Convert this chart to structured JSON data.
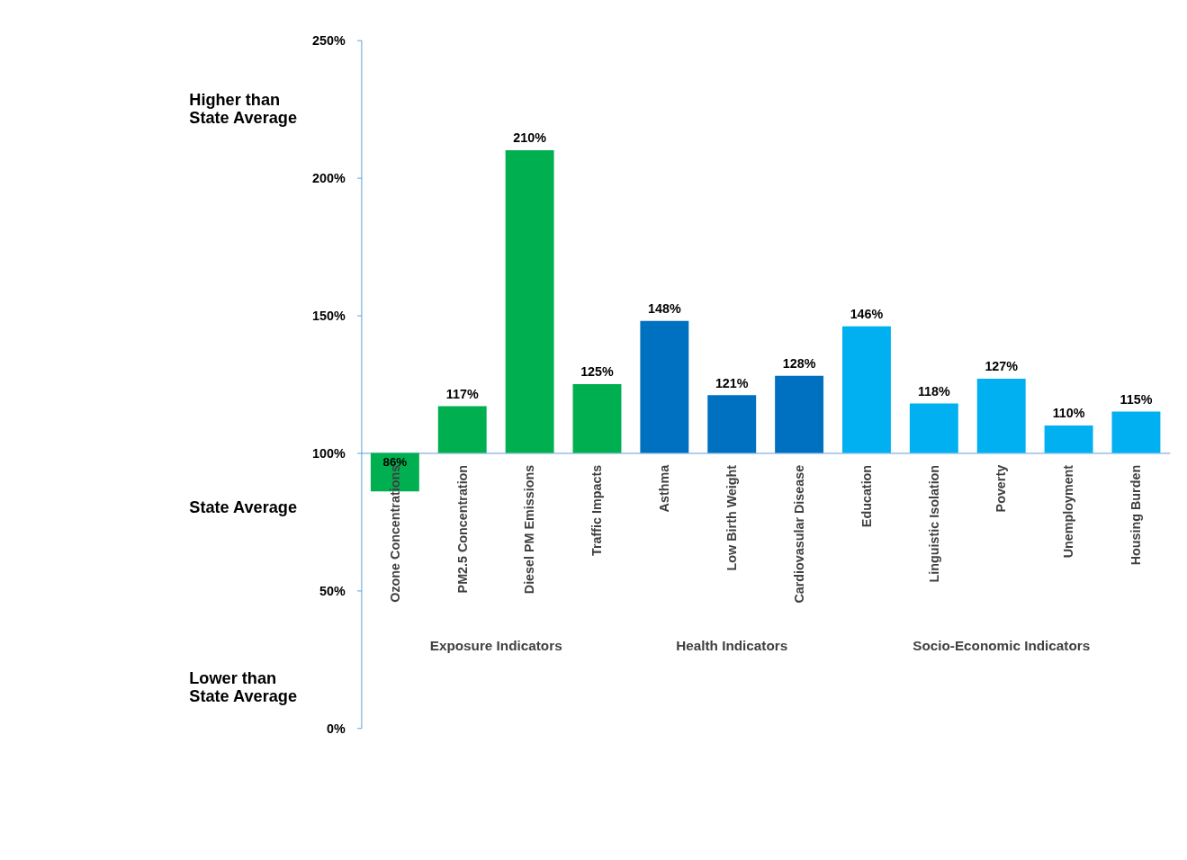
{
  "chart_data": {
    "type": "bar",
    "categories": [
      "Ozone Concentrations",
      "PM2.5 Concentration",
      "Diesel PM Emissions",
      "Traffic Impacts",
      "Asthma",
      "Low Birth Weight",
      "Cardiovasular Disease",
      "Education",
      "Linguistic Isolation",
      "Poverty",
      "Unemployment",
      "Housing Burden"
    ],
    "base": [
      100,
      100,
      100,
      100,
      100,
      100,
      100,
      100,
      100,
      100,
      100,
      100
    ],
    "values": [
      -14,
      17,
      110,
      25,
      48,
      21,
      28,
      46,
      18,
      27,
      10,
      15
    ],
    "value_labels": [
      "86%",
      "117%",
      "210%",
      "125%",
      "148%",
      "121%",
      "128%",
      "146%",
      "118%",
      "127%",
      "110%",
      "115%"
    ],
    "colors": [
      "#00b050",
      "#00b050",
      "#00b050",
      "#00b050",
      "#0070c0",
      "#0070c0",
      "#0070c0",
      "#00b0f0",
      "#00b0f0",
      "#00b0f0",
      "#00b0f0",
      "#00b0f0"
    ],
    "ylim": [
      0,
      250
    ],
    "yticks": [
      {
        "value": 0,
        "label": "0%"
      },
      {
        "value": 50,
        "label": "50%"
      },
      {
        "value": 100,
        "label": "100%"
      },
      {
        "value": 150,
        "label": "150%"
      },
      {
        "value": 200,
        "label": "200%"
      },
      {
        "value": 250,
        "label": "250%"
      }
    ],
    "annotations": [
      "Higher than\nState Average",
      "State Average",
      "Lower than\nState Average",
      "Exposure Indicators",
      "Health Indicators",
      "Socio-Economic Indicators"
    ],
    "grid": false
  }
}
